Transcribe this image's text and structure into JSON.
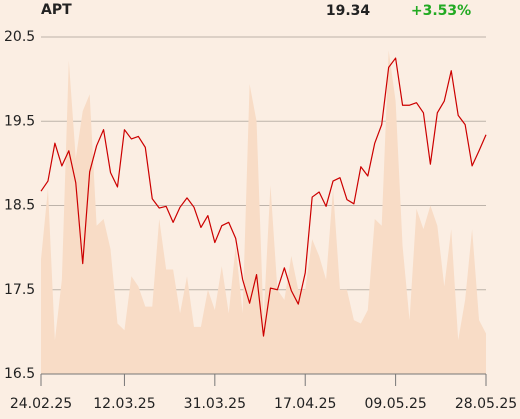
{
  "chart_data": {
    "type": "line",
    "title": "APT",
    "last_price": "19.34",
    "change": "+3.53%",
    "change_color": "#22aa22",
    "categories": [
      "24.02.25",
      null,
      null,
      null,
      null,
      null,
      null,
      null,
      null,
      null,
      null,
      null,
      "12.03.25",
      null,
      null,
      null,
      null,
      null,
      null,
      null,
      null,
      null,
      null,
      null,
      null,
      "31.03.25",
      null,
      null,
      null,
      null,
      null,
      null,
      null,
      null,
      null,
      null,
      null,
      null,
      "17.04.25",
      null,
      null,
      null,
      null,
      null,
      null,
      null,
      null,
      null,
      null,
      null,
      null,
      "09.05.25",
      null,
      null,
      null,
      null,
      null,
      null,
      null,
      null,
      null,
      null,
      null,
      null,
      "28.05.25"
    ],
    "series": [
      {
        "style": "area",
        "axis": "y2",
        "color": "#f8dcc6",
        "values": [
          34,
          55,
          10,
          28,
          93,
          64,
          78,
          83,
          44,
          46,
          37,
          15,
          13,
          29,
          26,
          20,
          20,
          46,
          31,
          31,
          18,
          29,
          14,
          14,
          25,
          19,
          32,
          18,
          38,
          18,
          86,
          75,
          16,
          56,
          25,
          22,
          35,
          25,
          25,
          40,
          35,
          28,
          55,
          25,
          25,
          16,
          15,
          19,
          46,
          44,
          96,
          81,
          38,
          16,
          49,
          43,
          50,
          44,
          26,
          43,
          10,
          22,
          43,
          16,
          12
        ]
      },
      {
        "style": "line",
        "color": "#cc0000",
        "values": [
          18.67,
          18.79,
          19.24,
          18.97,
          19.15,
          18.77,
          17.81,
          18.9,
          19.21,
          19.4,
          18.89,
          18.72,
          19.4,
          19.29,
          19.32,
          19.19,
          18.58,
          18.47,
          18.49,
          18.3,
          18.48,
          18.59,
          18.48,
          18.24,
          18.38,
          18.06,
          18.26,
          18.3,
          18.11,
          17.62,
          17.34,
          17.68,
          16.95,
          17.52,
          17.5,
          17.76,
          17.49,
          17.33,
          17.7,
          18.6,
          18.66,
          18.49,
          18.79,
          18.83,
          18.57,
          18.52,
          18.96,
          18.85,
          19.24,
          19.46,
          20.14,
          20.25,
          19.69,
          19.69,
          19.72,
          19.6,
          18.99,
          19.6,
          19.74,
          20.1,
          19.57,
          19.46,
          18.97,
          19.15,
          19.34
        ]
      }
    ],
    "ylim": [
      16.5,
      20.5
    ],
    "yticks": [
      16.5,
      17.5,
      18.5,
      19.5,
      20.5
    ],
    "y2lim": [
      0,
      100
    ],
    "grid": true
  }
}
